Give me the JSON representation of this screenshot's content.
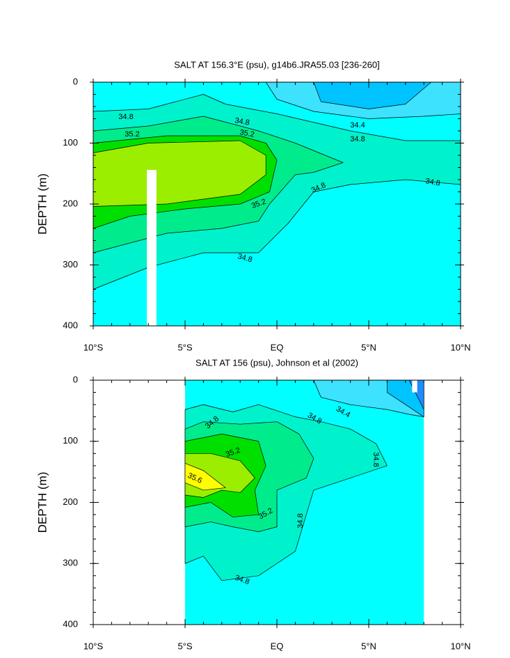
{
  "chart_data": [
    {
      "type": "contour",
      "title": "SALT AT 156.3°E (psu), g14b6.JRA55.03 [236-260]",
      "y_label": "DEPTH (m)",
      "xlim": [
        -10,
        10
      ],
      "xticks": [
        {
          "value": -10,
          "label": "10°S"
        },
        {
          "value": -5,
          "label": "5°S"
        },
        {
          "value": 0,
          "label": "EQ"
        },
        {
          "value": 5,
          "label": "5°N"
        },
        {
          "value": 10,
          "label": "10°N"
        }
      ],
      "ylim": [
        0,
        400
      ],
      "yticks": [
        0,
        100,
        200,
        300,
        400
      ],
      "y_inverted": true,
      "levels": [
        34.2,
        34.4,
        34.6,
        34.8,
        35.0,
        35.2,
        35.4,
        35.6
      ],
      "colors": [
        "#1e8cff",
        "#00c4ff",
        "#3de2ff",
        "#00ffff",
        "#00f2cc",
        "#00ec8c",
        "#00e000",
        "#9bee00",
        "#ffff00"
      ],
      "contour_labels": [
        34.8,
        34.8,
        34.4,
        35.2,
        35.2,
        34.8,
        35.2,
        34.8,
        34.8,
        34.8
      ]
    },
    {
      "type": "contour",
      "title": "SALT AT 156 (psu), Johnson et al (2002)",
      "y_label": "DEPTH (m)",
      "xlim": [
        -10,
        10
      ],
      "xticks": [
        {
          "value": -10,
          "label": "10°S"
        },
        {
          "value": -5,
          "label": "5°S"
        },
        {
          "value": 0,
          "label": "EQ"
        },
        {
          "value": 5,
          "label": "5°N"
        },
        {
          "value": 10,
          "label": "10°N"
        }
      ],
      "ylim": [
        0,
        400
      ],
      "yticks": [
        0,
        100,
        200,
        300,
        400
      ],
      "y_inverted": true,
      "levels": [
        34.2,
        34.4,
        34.6,
        34.8,
        35.0,
        35.2,
        35.4,
        35.6
      ],
      "colors": [
        "#1e8cff",
        "#00c4ff",
        "#3de2ff",
        "#00ffff",
        "#00f2cc",
        "#00ec8c",
        "#00e000",
        "#9bee00",
        "#ffff00"
      ],
      "contour_labels": [
        34.8,
        34.4,
        34.8,
        35.2,
        34.8,
        35.6,
        35.2,
        34.8,
        34.8
      ]
    }
  ]
}
